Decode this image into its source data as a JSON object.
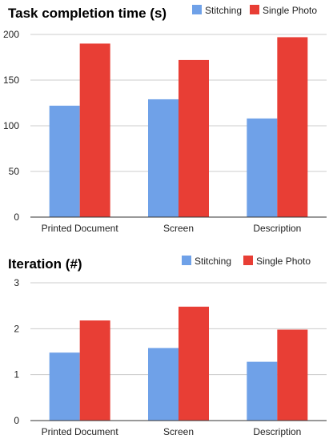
{
  "chart_data": [
    {
      "type": "bar",
      "title": "Task completion time (s)",
      "categories": [
        "Printed Document",
        "Screen",
        "Description"
      ],
      "series": [
        {
          "name": "Stitching",
          "values": [
            122,
            129,
            108
          ],
          "color": "#6fa1e8"
        },
        {
          "name": "Single Photo",
          "values": [
            190,
            172,
            197
          ],
          "color": "#e83e35"
        }
      ],
      "ylim": [
        0,
        200
      ],
      "yticks": [
        0,
        50,
        100,
        150,
        200
      ],
      "ytick_labels": [
        "0",
        "50",
        "100",
        "150",
        "200"
      ],
      "grid": true,
      "legend": "top-right"
    },
    {
      "type": "bar",
      "title": "Iteration (#)",
      "categories": [
        "Printed Document",
        "Screen",
        "Description"
      ],
      "series": [
        {
          "name": "Stitching",
          "values": [
            1.48,
            1.58,
            1.28
          ],
          "color": "#6fa1e8"
        },
        {
          "name": "Single Photo",
          "values": [
            2.18,
            2.48,
            1.98
          ],
          "color": "#e83e35"
        }
      ],
      "ylim": [
        0,
        3
      ],
      "yticks": [
        0,
        1,
        2,
        3
      ],
      "ytick_labels": [
        "0",
        "1",
        "2",
        "3"
      ],
      "grid": true,
      "legend": "top-right"
    }
  ]
}
